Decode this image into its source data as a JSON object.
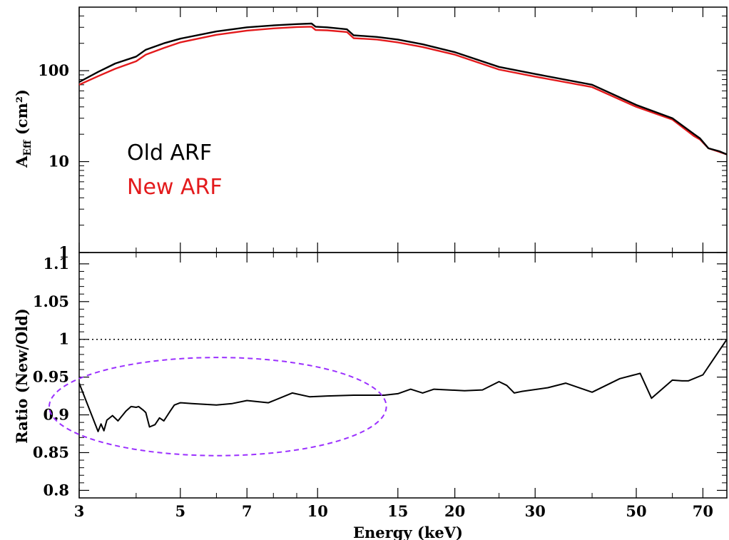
{
  "chart_data": [
    {
      "type": "line",
      "panel": "top",
      "ylabel": "A",
      "ylabel_sub": "Eff",
      "ylabel_unit": " (cm²)",
      "yscale": "log",
      "xscale": "log",
      "xlim": [
        3,
        79
      ],
      "ylim": [
        1,
        500
      ],
      "ytick_labels": [
        "1",
        "10",
        "100"
      ],
      "yticks": [
        1,
        10,
        100
      ],
      "legend_placement": "left-middle",
      "series": [
        {
          "name": "Old ARF",
          "color": "#000000",
          "x": [
            3,
            3.3,
            3.6,
            4.0,
            4.2,
            4.6,
            5,
            6,
            7,
            8,
            9,
            9.7,
            9.9,
            10.5,
            11.6,
            12,
            13.5,
            15,
            17,
            20,
            25,
            30,
            40,
            50,
            60,
            67,
            69,
            72,
            76,
            79
          ],
          "y": [
            75,
            97,
            120,
            143,
            170,
            200,
            225,
            270,
            300,
            315,
            325,
            330,
            305,
            300,
            285,
            245,
            235,
            220,
            195,
            160,
            110,
            92,
            70,
            42,
            30,
            20,
            18,
            14,
            13,
            12
          ]
        },
        {
          "name": "New ARF",
          "color": "#e31a1c",
          "x": [
            3,
            3.3,
            3.6,
            4.0,
            4.2,
            4.6,
            5,
            6,
            7,
            8,
            9,
            9.7,
            9.9,
            10.5,
            11.6,
            12,
            13.5,
            15,
            17,
            20,
            25,
            30,
            40,
            50,
            60,
            67,
            69,
            72,
            76,
            79
          ],
          "y": [
            70,
            87,
            105,
            127,
            150,
            178,
            205,
            248,
            276,
            292,
            302,
            305,
            280,
            278,
            266,
            228,
            220,
            205,
            182,
            150,
            103,
            86,
            66,
            40,
            29,
            19,
            17.5,
            14,
            12.8,
            12
          ]
        }
      ]
    },
    {
      "type": "line",
      "panel": "bottom",
      "xlabel": "Energy (keV)",
      "ylabel": "Ratio (New/Old)",
      "xscale": "log",
      "xlim": [
        3,
        79
      ],
      "ylim": [
        0.79,
        1.115
      ],
      "yticks": [
        0.8,
        0.85,
        0.9,
        0.95,
        1,
        1.05,
        1.1
      ],
      "ytick_labels": [
        "0.8",
        "0.85",
        "0.9",
        "0.95",
        "1",
        "1.05",
        "1.1"
      ],
      "xticks": [
        3,
        5,
        7,
        10,
        15,
        20,
        30,
        50,
        70
      ],
      "xtick_labels": [
        "3",
        "5",
        "7",
        "10",
        "15",
        "20",
        "30",
        "50",
        "70"
      ],
      "reference_line": 1.0,
      "series": [
        {
          "color": "#000000",
          "x": [
            3,
            3.3,
            3.35,
            3.4,
            3.45,
            3.55,
            3.65,
            3.8,
            3.9,
            4.0,
            4.05,
            4.15,
            4.2,
            4.28,
            4.4,
            4.5,
            4.6,
            4.75,
            4.85,
            5.0,
            5.3,
            6,
            6.5,
            7,
            7.8,
            8.8,
            9.6,
            10.5,
            12,
            14,
            15,
            16,
            17,
            18,
            21,
            23,
            25,
            26,
            27,
            28,
            32,
            35,
            40,
            46,
            51,
            54,
            60,
            63,
            65,
            70,
            79
          ],
          "y": [
            0.942,
            0.878,
            0.888,
            0.879,
            0.893,
            0.899,
            0.892,
            0.905,
            0.911,
            0.91,
            0.911,
            0.906,
            0.903,
            0.884,
            0.887,
            0.896,
            0.892,
            0.905,
            0.913,
            0.916,
            0.915,
            0.913,
            0.915,
            0.919,
            0.916,
            0.929,
            0.924,
            0.925,
            0.926,
            0.926,
            0.928,
            0.934,
            0.929,
            0.934,
            0.932,
            0.933,
            0.944,
            0.939,
            0.929,
            0.931,
            0.936,
            0.942,
            0.93,
            0.948,
            0.955,
            0.922,
            0.946,
            0.945,
            0.945,
            0.953,
            1.0
          ]
        }
      ],
      "annotations": [
        {
          "type": "ellipse",
          "style": "dashed",
          "color": "#9b30ff",
          "center": [
            6,
            0.911
          ],
          "xspan": [
            3,
            14
          ],
          "yspan": [
            0.846,
            0.976
          ]
        }
      ]
    }
  ]
}
